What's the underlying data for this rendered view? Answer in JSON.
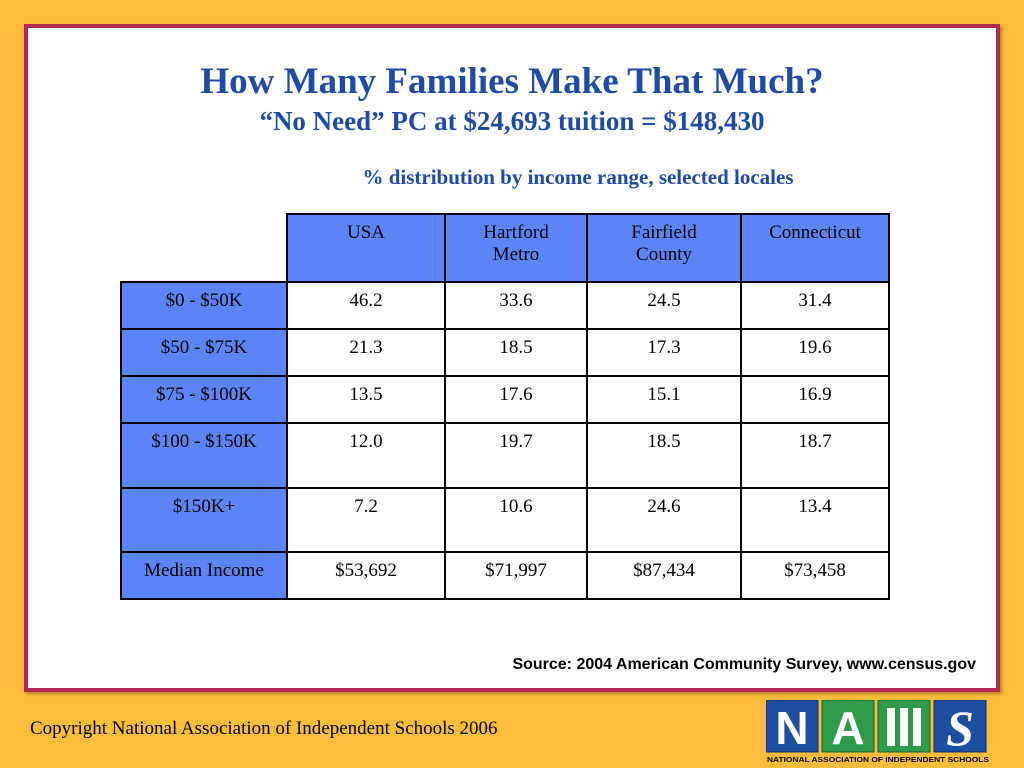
{
  "title": "How Many Families Make That Much?",
  "subtitle": "“No Need” PC at $24,693 tuition = $148,430",
  "table_caption": "% distribution by income range, selected locales",
  "table": {
    "columns": [
      "USA",
      "Hartford\nMetro",
      "Fairfield\nCounty",
      "Connecticut"
    ],
    "rows": [
      {
        "label": "$0 - $50K",
        "values": [
          "46.2",
          "33.6",
          "24.5",
          "31.4"
        ]
      },
      {
        "label": "$50 - $75K",
        "values": [
          "21.3",
          "18.5",
          "17.3",
          "19.6"
        ]
      },
      {
        "label": "$75 - $100K",
        "values": [
          "13.5",
          "17.6",
          "15.1",
          "16.9"
        ]
      },
      {
        "label": "$100 - $150K",
        "values": [
          "12.0",
          "19.7",
          "18.5",
          "18.7"
        ]
      },
      {
        "label": "$150K+",
        "values": [
          "7.2",
          "10.6",
          "24.6",
          "13.4"
        ]
      },
      {
        "label": "Median Income",
        "values": [
          "$53,692",
          "$71,997",
          "$87,434",
          "$73,458"
        ]
      }
    ]
  },
  "source": "Source:  2004 American Community Survey, www.census.gov",
  "footer": {
    "copyright": "Copyright National Association of Independent Schools 2006",
    "logo_caption": "NATIONAL ASSOCIATION OF INDEPENDENT SCHOOLS",
    "logo_letters": [
      "N",
      "A",
      "I",
      "S"
    ]
  },
  "colors": {
    "background": "#fbbd3a",
    "frame_border": "#b0294f",
    "title": "#1f4aa6",
    "header_fill": "#5b85f6",
    "logo_blue": "#1d4fa0",
    "logo_green": "#2f9a4a",
    "logo_red": "#c3283a"
  }
}
